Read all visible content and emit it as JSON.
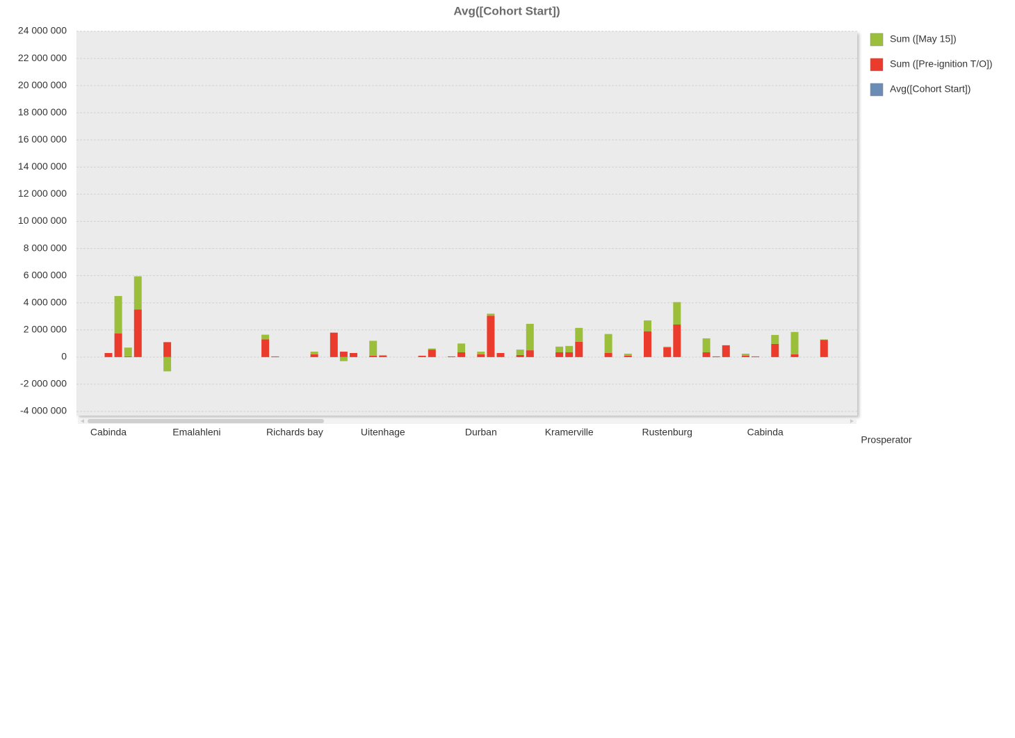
{
  "chart_data": {
    "type": "bar",
    "stacked": true,
    "title": "Avg([Cohort Start])",
    "x_label": "Prosperator",
    "categories": [
      null,
      null,
      "Cabinda",
      null,
      null,
      null,
      null,
      null,
      null,
      null,
      null,
      "Emalahleni",
      null,
      null,
      null,
      null,
      null,
      null,
      null,
      null,
      null,
      "Richards bay",
      null,
      null,
      null,
      null,
      null,
      null,
      null,
      null,
      "Uitenhage",
      null,
      null,
      null,
      null,
      null,
      null,
      null,
      null,
      null,
      "Durban",
      null,
      null,
      null,
      null,
      null,
      null,
      null,
      null,
      "Kramerville",
      null,
      null,
      null,
      null,
      null,
      null,
      null,
      null,
      null,
      "Rustenburg",
      null,
      null,
      null,
      null,
      null,
      null,
      null,
      null,
      null,
      "Cabinda",
      null,
      null,
      null,
      null,
      null,
      null,
      null,
      null
    ],
    "series": [
      {
        "name": "Sum ([May 15])",
        "color": "#9cbf3b",
        "values": [
          null,
          null,
          null,
          2750000,
          650000,
          2450000,
          null,
          null,
          -1050000,
          null,
          null,
          null,
          null,
          null,
          null,
          null,
          null,
          null,
          350000,
          null,
          null,
          null,
          null,
          200000,
          null,
          null,
          -300000,
          null,
          null,
          1100000,
          50000,
          null,
          null,
          null,
          null,
          80000,
          null,
          null,
          650000,
          null,
          200000,
          150000,
          null,
          null,
          400000,
          1950000,
          null,
          null,
          420000,
          470000,
          1030000,
          null,
          null,
          1400000,
          null,
          150000,
          null,
          800000,
          null,
          50000,
          1650000,
          null,
          null,
          1030000,
          null,
          null,
          null,
          150000,
          null,
          null,
          660000,
          null,
          1650000,
          null,
          null,
          30000,
          null,
          null
        ]
      },
      {
        "name": "Sum ([Pre-ignition T/O])",
        "color": "#ea3b2c",
        "values": [
          null,
          null,
          300000,
          1750000,
          50000,
          3500000,
          null,
          null,
          1100000,
          null,
          null,
          null,
          null,
          null,
          null,
          null,
          null,
          null,
          1300000,
          50000,
          null,
          null,
          null,
          200000,
          null,
          1800000,
          400000,
          300000,
          null,
          100000,
          100000,
          null,
          null,
          null,
          100000,
          550000,
          null,
          50000,
          350000,
          null,
          200000,
          3050000,
          300000,
          null,
          150000,
          500000,
          null,
          null,
          350000,
          350000,
          1120000,
          null,
          null,
          300000,
          null,
          100000,
          null,
          1900000,
          null,
          720000,
          2400000,
          null,
          null,
          350000,
          50000,
          870000,
          null,
          100000,
          50000,
          null,
          970000,
          null,
          200000,
          null,
          null,
          1270000,
          null,
          null
        ]
      },
      {
        "name": "Avg([Cohort Start])",
        "color": "#6b8db5",
        "values": [
          null,
          null,
          null,
          null,
          null,
          null,
          null,
          null,
          null,
          null,
          null,
          null,
          null,
          null,
          null,
          null,
          null,
          null,
          null,
          null,
          null,
          null,
          null,
          null,
          null,
          null,
          null,
          null,
          null,
          null,
          null,
          null,
          null,
          null,
          null,
          null,
          null,
          null,
          null,
          null,
          null,
          null,
          null,
          null,
          null,
          null,
          null,
          null,
          null,
          null,
          null,
          null,
          null,
          null,
          null,
          null,
          null,
          null,
          null,
          null,
          null,
          null,
          null,
          null,
          null,
          null,
          null,
          null,
          null,
          null,
          null,
          null,
          null,
          null,
          null,
          null,
          null,
          null
        ]
      }
    ],
    "ylim": [
      -4000000,
      24000000
    ],
    "yticks": [
      {
        "value": -4000000,
        "label": "-4 000 000"
      },
      {
        "value": -2000000,
        "label": "-2 000 000"
      },
      0,
      {
        "value": 2000000,
        "label": "2 000 000"
      },
      {
        "value": 4000000,
        "label": "4 000 000"
      },
      {
        "value": 6000000,
        "label": "6 000 000"
      },
      {
        "value": 8000000,
        "label": "8 000 000"
      },
      {
        "value": 10000000,
        "label": "10 000 000"
      },
      {
        "value": 12000000,
        "label": "12 000 000"
      },
      {
        "value": 14000000,
        "label": "14 000 000"
      },
      {
        "value": 16000000,
        "label": "16 000 000"
      },
      {
        "value": 18000000,
        "label": "18 000 000"
      },
      {
        "value": 20000000,
        "label": "20 000 000"
      },
      {
        "value": 22000000,
        "label": "22 000 000"
      },
      {
        "value": 24000000,
        "label": "24 000 000"
      }
    ],
    "grid": true,
    "legend": "right"
  }
}
